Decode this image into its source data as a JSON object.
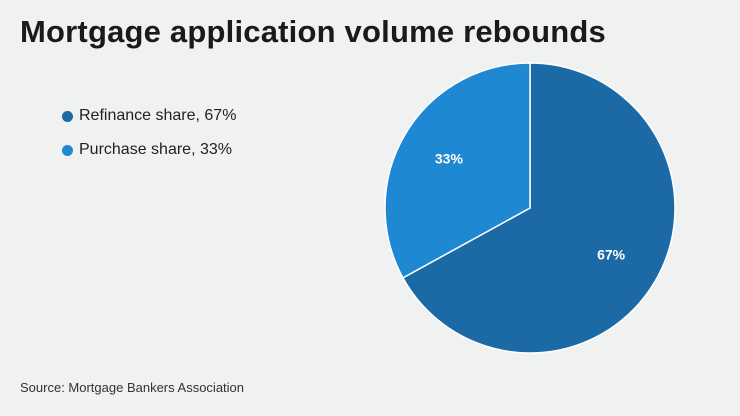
{
  "chart_data": {
    "type": "pie",
    "title": "Mortgage application volume rebounds",
    "slices": [
      {
        "name": "Refinance share, 67%",
        "value": 67,
        "label": "67%",
        "color": "#1b6aa5"
      },
      {
        "name": "Purchase share, 33%",
        "value": 33,
        "label": "33%",
        "color": "#1f88d2"
      }
    ],
    "legend_position": "left",
    "start_angle_deg": 0,
    "direction": "clockwise",
    "slice_border_color": "#ffffff"
  },
  "source": "Source: Mortgage Bankers Association"
}
